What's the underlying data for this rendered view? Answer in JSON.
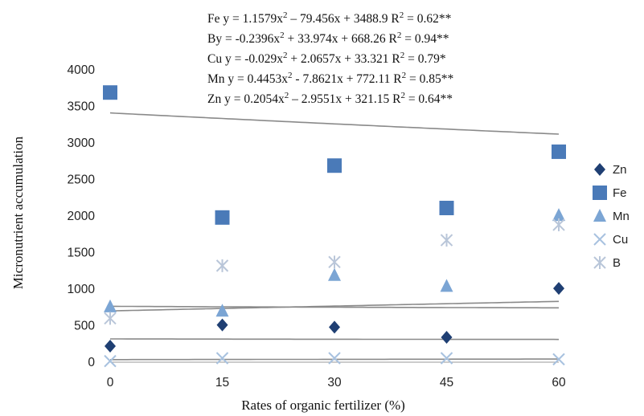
{
  "chart_data": {
    "type": "scatter",
    "xlabel": "Rates of organic fertilizer (%)",
    "ylabel": "Micronutrient accumulation",
    "x": [
      0,
      15,
      30,
      45,
      60
    ],
    "xticks": [
      "0",
      "15",
      "30",
      "45",
      "60"
    ],
    "yticks": [
      "0",
      "500",
      "1000",
      "1500",
      "2000",
      "2500",
      "3000",
      "3500",
      "4000"
    ],
    "ylim": [
      0,
      4000
    ],
    "grid": false,
    "legend_position": "right",
    "series": [
      {
        "name": "Zn",
        "marker": "diamond",
        "color": "#1f3f73",
        "values": [
          220,
          510,
          480,
          340,
          1010
        ]
      },
      {
        "name": "Fe",
        "marker": "square",
        "color": "#4a7ab8",
        "values": [
          3690,
          1980,
          2690,
          2110,
          2880
        ]
      },
      {
        "name": "Mn",
        "marker": "triangle",
        "color": "#7ba5d4",
        "values": [
          760,
          700,
          1190,
          1040,
          2010
        ]
      },
      {
        "name": "Cu",
        "marker": "x",
        "color": "#a8c2df",
        "values": [
          15,
          55,
          55,
          55,
          40
        ]
      },
      {
        "name": "B",
        "marker": "star",
        "color": "#b9c6d9",
        "values": [
          600,
          1320,
          1370,
          1670,
          1880
        ]
      }
    ],
    "trendlines": [
      {
        "series": "Fe",
        "coefficients": [
          1.1579,
          -79.456,
          3488.9
        ]
      },
      {
        "series": "B",
        "coefficients": [
          -0.2396,
          33.974,
          668.26
        ]
      },
      {
        "series": "Cu",
        "coefficients": [
          -0.029,
          2.0657,
          33.321
        ]
      },
      {
        "series": "Mn",
        "coefficients": [
          0.4453,
          -7.8621,
          772.11
        ]
      },
      {
        "series": "Zn",
        "coefficients": [
          0.2054,
          -2.9551,
          321.15
        ]
      }
    ],
    "annotations": [
      {
        "prefix": "Fe y = 1.1579x",
        "sup": "2",
        "mid": " – 79.456x + 3488.9 R",
        "sup2": "2",
        "suffix": " = 0.62**"
      },
      {
        "prefix": "By = -0.2396x",
        "sup": "2",
        "mid": " + 33.974x + 668.26 R",
        "sup2": "2",
        "suffix": " = 0.94**"
      },
      {
        "prefix": "Cu y = -0.029x",
        "sup": "2",
        "mid": " + 2.0657x + 33.321 R",
        "sup2": "2",
        "suffix": " = 0.79*"
      },
      {
        "prefix": "Mn y = 0.4453x",
        "sup": "2",
        "mid": " - 7.8621x + 772.11 R",
        "sup2": "2",
        "suffix": " = 0.85**"
      },
      {
        "prefix": "Zn y = 0.2054x",
        "sup": "2",
        "mid": " – 2.9551x + 321.15 R",
        "sup2": "2",
        "suffix": " = 0.64**"
      }
    ]
  }
}
